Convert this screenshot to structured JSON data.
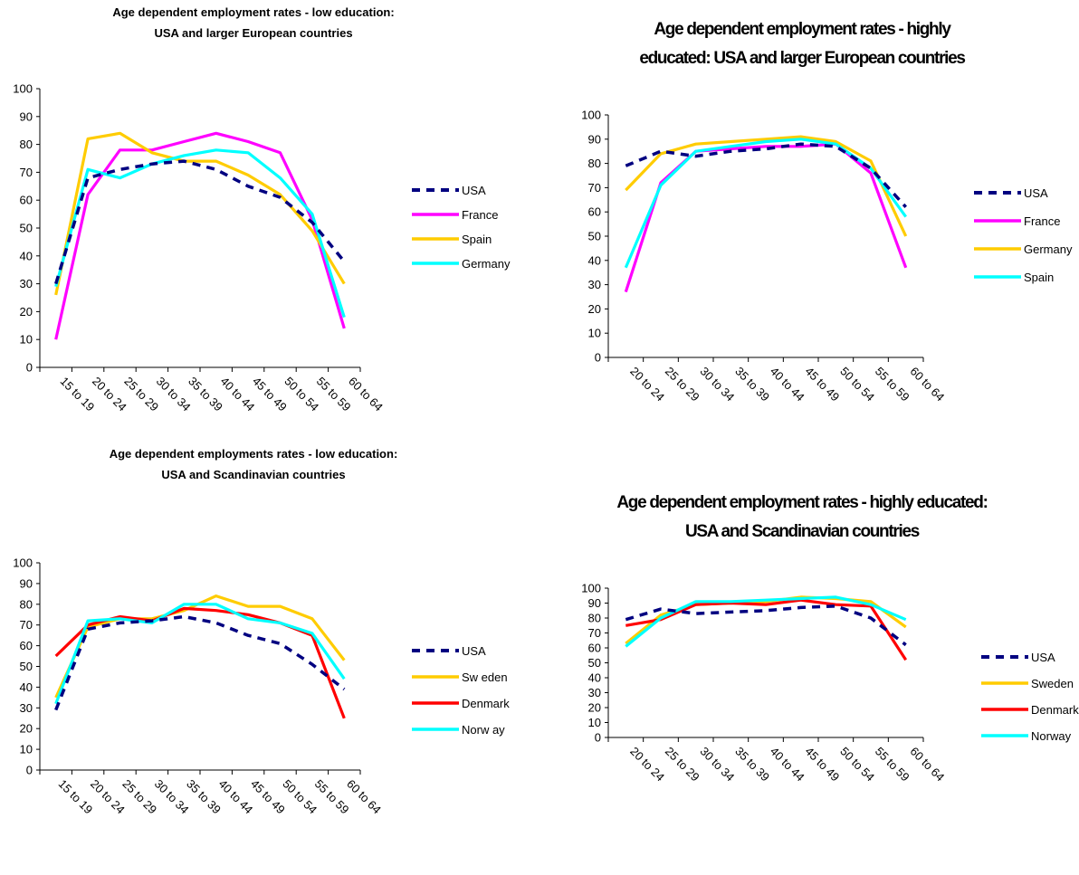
{
  "chart_data": [
    {
      "type": "line",
      "title_lines": [
        "Age dependent employment rates - low education:",
        "USA and larger European countries"
      ],
      "categories": [
        "15 to 19",
        "20 to 24",
        "25 to 29",
        "30 to 34",
        "35 to 39",
        "40 to 44",
        "45 to 49",
        "50 to 54",
        "55 to 59",
        "60 to 64"
      ],
      "ylim": [
        0,
        100
      ],
      "yticks": [
        0,
        10,
        20,
        30,
        40,
        50,
        60,
        70,
        80,
        90,
        100
      ],
      "legend_position": "right",
      "series": [
        {
          "name": "USA",
          "color": "#000080",
          "dash": true,
          "values": [
            30,
            68,
            71,
            73,
            74,
            71,
            65,
            61,
            52,
            38
          ]
        },
        {
          "name": "France",
          "color": "#ff00ff",
          "dash": false,
          "values": [
            10,
            62,
            78,
            78,
            81,
            84,
            81,
            77,
            53,
            14
          ]
        },
        {
          "name": "Spain",
          "color": "#ffcc00",
          "dash": false,
          "values": [
            26,
            82,
            84,
            77,
            74,
            74,
            69,
            62,
            49,
            30
          ]
        },
        {
          "name": "Germany",
          "color": "#00ffff",
          "dash": false,
          "values": [
            29,
            71,
            68,
            73,
            76,
            78,
            77,
            68,
            55,
            18
          ]
        }
      ]
    },
    {
      "type": "line",
      "title_lines": [
        "Age dependent employment rates - highly",
        "educated: USA and larger European countries"
      ],
      "categories": [
        "20 to 24",
        "25 to 29",
        "30 to 34",
        "35 to 39",
        "40 to 44",
        "45 to 49",
        "50 to 54",
        "55 to 59",
        "60 to 64"
      ],
      "ylim": [
        0,
        100
      ],
      "yticks": [
        0,
        10,
        20,
        30,
        40,
        50,
        60,
        70,
        80,
        90,
        100
      ],
      "legend_position": "right",
      "series": [
        {
          "name": "USA",
          "color": "#000080",
          "dash": true,
          "values": [
            79,
            85,
            83,
            85,
            86,
            88,
            87,
            78,
            62
          ]
        },
        {
          "name": "France",
          "color": "#ff00ff",
          "dash": false,
          "values": [
            27,
            72,
            85,
            86,
            87,
            87,
            88,
            76,
            37
          ]
        },
        {
          "name": "Germany",
          "color": "#ffcc00",
          "dash": false,
          "values": [
            69,
            84,
            88,
            89,
            90,
            91,
            89,
            81,
            50
          ]
        },
        {
          "name": "Spain",
          "color": "#00ffff",
          "dash": false,
          "values": [
            37,
            71,
            85,
            87,
            89,
            90,
            88,
            78,
            58
          ]
        }
      ]
    },
    {
      "type": "line",
      "title_lines": [
        "Age dependent employments rates - low education:",
        "USA and Scandinavian countries"
      ],
      "categories": [
        "15 to 19",
        "20 to 24",
        "25 to 29",
        "30 to 34",
        "35 to 39",
        "40 to 44",
        "45 to 49",
        "50 to 54",
        "55 to 59",
        "60 to 64"
      ],
      "ylim": [
        0,
        100
      ],
      "yticks": [
        0,
        10,
        20,
        30,
        40,
        50,
        60,
        70,
        80,
        90,
        100
      ],
      "legend_position": "right",
      "series": [
        {
          "name": "USA",
          "color": "#000080",
          "dash": true,
          "values": [
            29,
            68,
            71,
            72,
            74,
            71,
            65,
            61,
            51,
            39
          ]
        },
        {
          "name": "Sw eden",
          "color": "#ffcc00",
          "dash": false,
          "values": [
            35,
            69,
            73,
            73,
            77,
            84,
            79,
            79,
            73,
            53
          ]
        },
        {
          "name": "Denmark",
          "color": "#ff0000",
          "dash": false,
          "values": [
            55,
            70,
            74,
            72,
            78,
            77,
            75,
            71,
            65,
            25
          ]
        },
        {
          "name": "Norw ay",
          "color": "#00ffff",
          "dash": false,
          "values": [
            32,
            72,
            73,
            71,
            80,
            80,
            73,
            71,
            66,
            44
          ]
        }
      ]
    },
    {
      "type": "line",
      "title_lines": [
        "Age dependent employment rates - highly educated:",
        "USA and Scandinavian countries"
      ],
      "categories": [
        "20 to 24",
        "25 to 29",
        "30 to 34",
        "35 to 39",
        "40 to 44",
        "45 to 49",
        "50 to 54",
        "55 to 59",
        "60 to 64"
      ],
      "ylim": [
        0,
        100
      ],
      "yticks": [
        0,
        10,
        20,
        30,
        40,
        50,
        60,
        70,
        80,
        90,
        100
      ],
      "legend_position": "right",
      "series": [
        {
          "name": "USA",
          "color": "#000080",
          "dash": true,
          "values": [
            79,
            86,
            83,
            84,
            85,
            87,
            88,
            80,
            62
          ]
        },
        {
          "name": "Sweden",
          "color": "#ffcc00",
          "dash": false,
          "values": [
            63,
            82,
            89,
            90,
            91,
            94,
            93,
            91,
            74
          ]
        },
        {
          "name": "Denmark",
          "color": "#ff0000",
          "dash": false,
          "values": [
            75,
            79,
            89,
            90,
            89,
            92,
            89,
            88,
            52
          ]
        },
        {
          "name": "Norway",
          "color": "#00ffff",
          "dash": false,
          "values": [
            61,
            80,
            91,
            91,
            92,
            93,
            94,
            89,
            79
          ]
        }
      ]
    }
  ]
}
